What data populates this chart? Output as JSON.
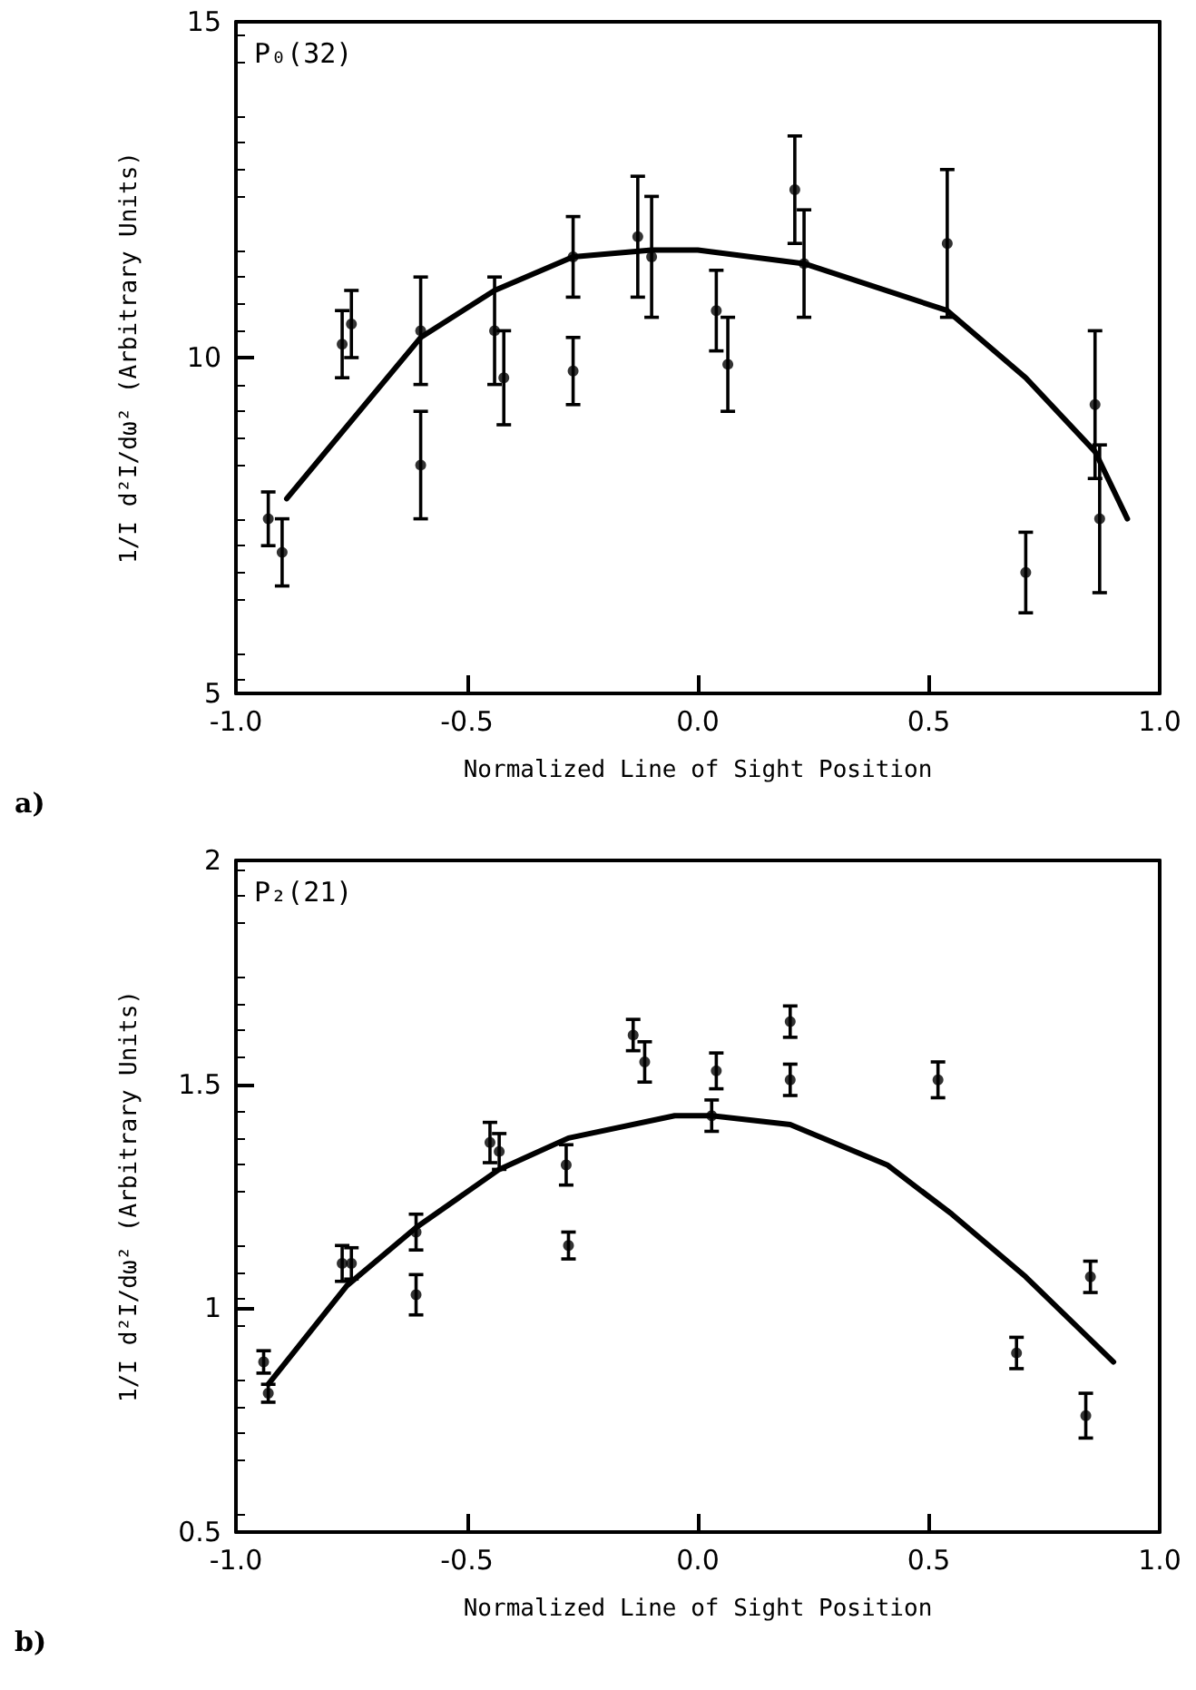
{
  "chart_data": [
    {
      "type": "scatter",
      "xlabel": "Normalized Line of Sight Position",
      "ylabel": "1/I d²I/dω² (Arbitrary Units)",
      "annotations": [
        "P₀(32)",
        "a)"
      ],
      "xlim": [
        -1,
        1
      ],
      "xticks": [
        {
          "value": -1,
          "label": "-1.0"
        },
        {
          "value": -0.5,
          "label": "-0.5"
        },
        {
          "value": 0,
          "label": "0.0"
        },
        {
          "value": 0.5,
          "label": "0.5"
        },
        {
          "value": 1,
          "label": "1.0"
        }
      ],
      "ylim": [
        5,
        15
      ],
      "yticks": [
        5,
        10,
        15
      ],
      "marker": "circle",
      "series": [
        {
          "color": "#000000",
          "x": [
            -0.93,
            -0.9,
            -0.77,
            -0.75,
            -0.6,
            -0.6,
            -0.44,
            -0.42,
            -0.27,
            -0.27,
            -0.13,
            -0.1,
            0.04,
            0.065,
            0.21,
            0.23,
            0.54,
            0.71,
            0.86,
            0.87
          ],
          "values": [
            7.6,
            7.1,
            10.2,
            10.5,
            10.4,
            8.4,
            10.4,
            9.7,
            11.5,
            9.8,
            11.8,
            11.5,
            10.7,
            9.9,
            12.5,
            11.4,
            11.7,
            6.8,
            9.3,
            7.6
          ],
          "errors": [
            0.4,
            0.5,
            0.5,
            0.5,
            0.8,
            0.8,
            0.8,
            0.7,
            0.6,
            0.5,
            0.9,
            0.9,
            0.6,
            0.7,
            0.8,
            0.8,
            1.1,
            0.6,
            1.1,
            1.1
          ]
        },
        {
          "type": "line",
          "color": "#000000",
          "marker": "none",
          "x": [
            -0.89,
            -0.6,
            -0.44,
            -0.27,
            -0.1,
            0,
            0.23,
            0.54,
            0.71,
            0.86,
            0.93
          ],
          "values": [
            7.9,
            10.3,
            11,
            11.5,
            11.6,
            11.6,
            11.4,
            10.7,
            9.7,
            8.6,
            7.6
          ]
        }
      ]
    },
    {
      "type": "scatter",
      "xlabel": "Normalized Line of Sight Position",
      "ylabel": "1/I d²I/dω² (Arbitrary Units)",
      "annotations": [
        "P₂(21)",
        "b)"
      ],
      "xlim": [
        -1,
        1
      ],
      "xticks": [
        {
          "value": -1,
          "label": "-1.0"
        },
        {
          "value": -0.5,
          "label": "-0.5"
        },
        {
          "value": 0,
          "label": "0.0"
        },
        {
          "value": 0.5,
          "label": "0.5"
        },
        {
          "value": 1,
          "label": "1.0"
        }
      ],
      "ylim": [
        0.5,
        2
      ],
      "yticks": [
        0.5,
        1,
        1.5,
        2
      ],
      "marker": "circle",
      "series": [
        {
          "color": "#000000",
          "x": [
            -0.94,
            -0.93,
            -0.77,
            -0.75,
            -0.61,
            -0.61,
            -0.45,
            -0.43,
            -0.285,
            -0.28,
            -0.14,
            -0.115,
            0.04,
            0.03,
            0.2,
            0.2,
            0.52,
            0.69,
            0.85,
            0.84
          ],
          "values": [
            0.88,
            0.81,
            1.1,
            1.1,
            1.17,
            1.03,
            1.37,
            1.35,
            1.32,
            1.14,
            1.61,
            1.55,
            1.53,
            1.43,
            1.64,
            1.51,
            1.51,
            0.9,
            1.07,
            0.76
          ],
          "errors": [
            0.025,
            0.02,
            0.04,
            0.035,
            0.04,
            0.045,
            0.045,
            0.04,
            0.045,
            0.03,
            0.035,
            0.045,
            0.04,
            0.035,
            0.035,
            0.035,
            0.04,
            0.035,
            0.035,
            0.05
          ]
        },
        {
          "type": "line",
          "color": "#000000",
          "marker": "none",
          "x": [
            -0.93,
            -0.76,
            -0.61,
            -0.43,
            -0.28,
            -0.05,
            0.03,
            0.2,
            0.41,
            0.55,
            0.71,
            0.9
          ],
          "values": [
            0.83,
            1.05,
            1.18,
            1.31,
            1.38,
            1.43,
            1.43,
            1.41,
            1.32,
            1.21,
            1.07,
            0.88
          ]
        }
      ]
    }
  ]
}
